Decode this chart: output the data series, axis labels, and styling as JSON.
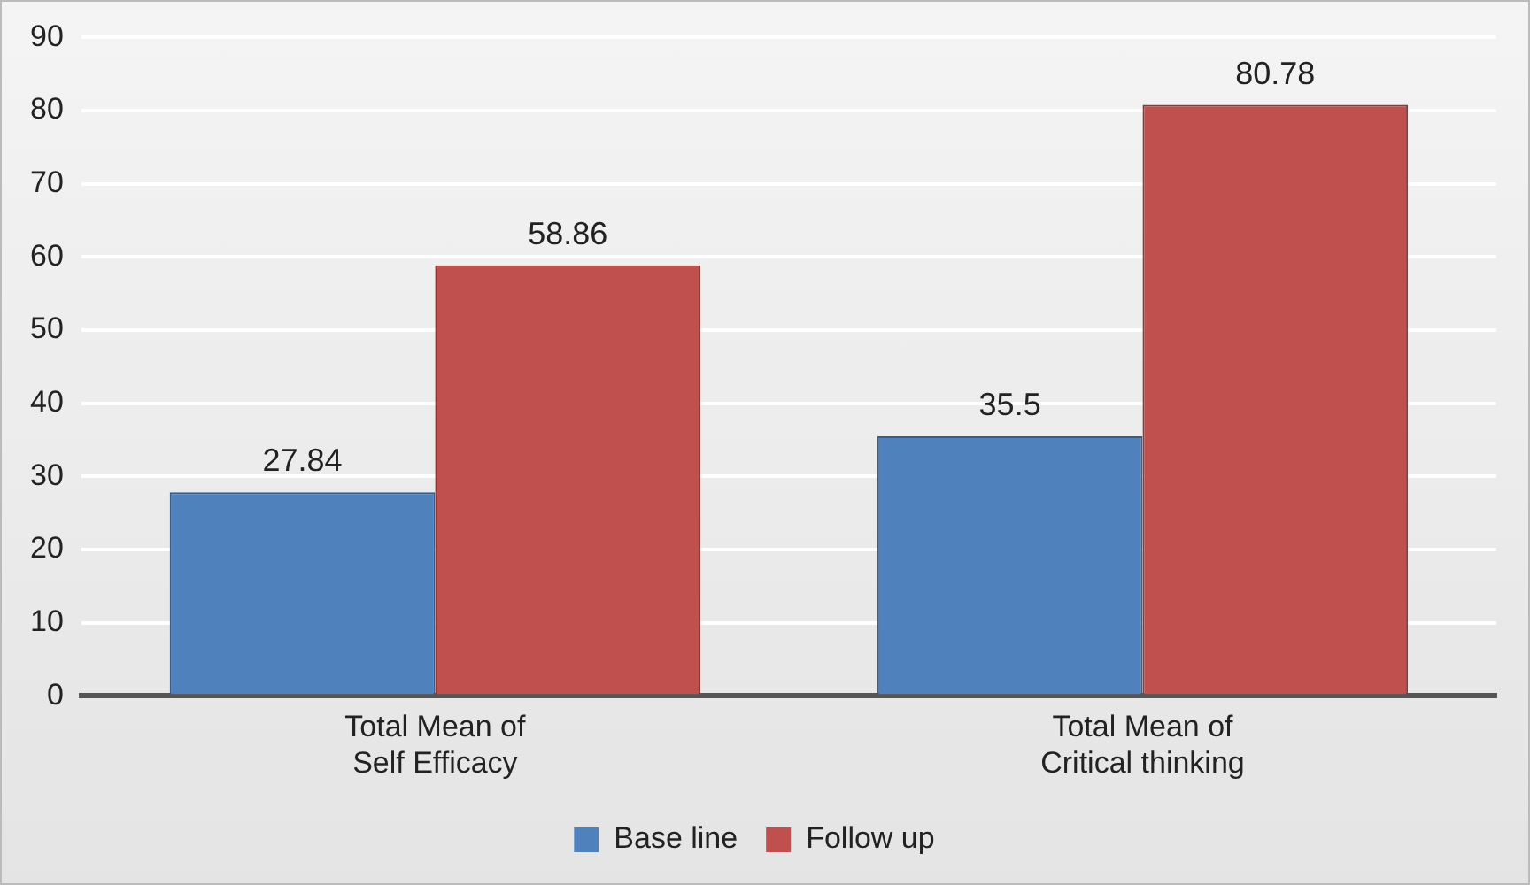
{
  "chart_data": {
    "type": "bar",
    "categories": [
      "Total Mean of Self Efficacy",
      "Total Mean of Critical thinking"
    ],
    "series": [
      {
        "name": "Base line",
        "color": "#4f81bd",
        "values": [
          27.84,
          35.5
        ]
      },
      {
        "name": "Follow up",
        "color": "#c0504d",
        "values": [
          58.86,
          80.78
        ]
      }
    ],
    "ylim": [
      0,
      90
    ],
    "yticks": [
      0,
      10,
      20,
      30,
      40,
      50,
      60,
      70,
      80,
      90
    ],
    "grid": "y",
    "legend": "bottom",
    "data_labels": true
  }
}
